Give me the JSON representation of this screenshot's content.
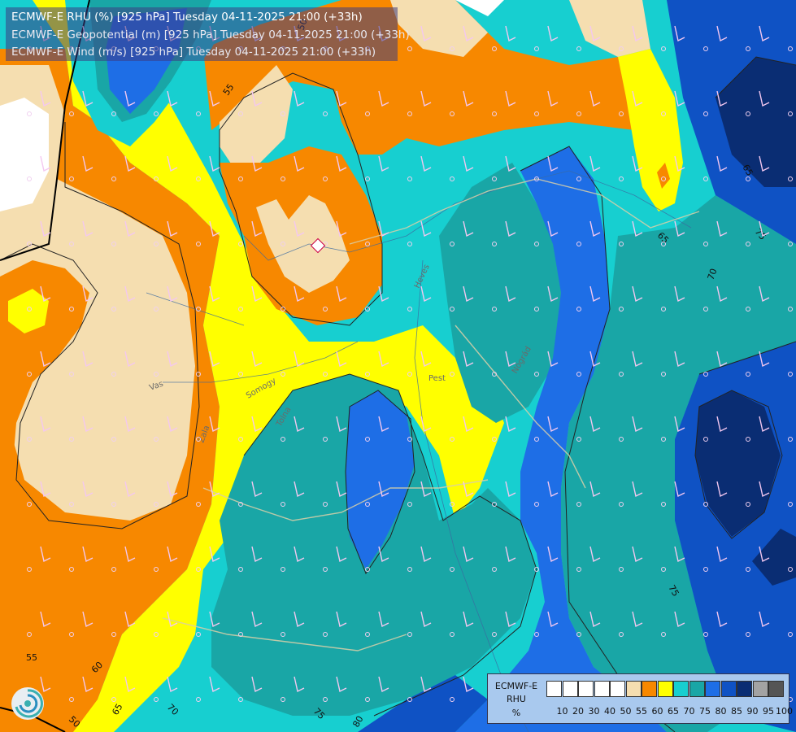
{
  "header": {
    "line1": "ECMWF-E RHU (%) [925 hPa] Tuesday 04-11-2025 21:00 (+33h)",
    "line2": "ECMWF-E Geopotential (m) [925 hPa] Tuesday 04-11-2025 21:00 (+33h)",
    "line3": "ECMWF-E Wind (m/s) [925 hPa] Tuesday 04-11-2025 21:00 (+33h)"
  },
  "legend": {
    "title_model": "ECMWF-E",
    "title_var": "RHU",
    "title_unit": "%",
    "ticks": [
      "10",
      "20",
      "30",
      "40",
      "50",
      "55",
      "60",
      "65",
      "70",
      "75",
      "80",
      "85",
      "90",
      "95",
      "100"
    ],
    "colors": [
      "#ffffff",
      "#ffffff",
      "#ffffff",
      "#ffffff",
      "#ffffff",
      "#f5deb0",
      "#f78800",
      "#ffff00",
      "#17cfd0",
      "#19a6a6",
      "#1e6ee6",
      "#0f52c4",
      "#0a2d73",
      "#a3a3a3",
      "#555555"
    ]
  },
  "map": {
    "colors": {
      "tan": "#f5deb0",
      "orange": "#f78800",
      "yellow": "#ffff00",
      "cyan": "#17cfd0",
      "teal": "#19a6a6",
      "blue": "#1e6ee6",
      "darkblue": "#0f52c4",
      "navy": "#0a2d73",
      "white": "#ffffff"
    },
    "contour_labels": [
      {
        "text": "55",
        "id": "c55-top"
      },
      {
        "text": "50",
        "id": "c50-top"
      },
      {
        "text": "65",
        "id": "c65-ne"
      },
      {
        "text": "65",
        "id": "c65-e"
      },
      {
        "text": "70",
        "id": "c70-e"
      },
      {
        "text": "75",
        "id": "c75-e"
      },
      {
        "text": "75",
        "id": "c75-se"
      },
      {
        "text": "55",
        "id": "c55-sw"
      },
      {
        "text": "60",
        "id": "c60-sw"
      },
      {
        "text": "65",
        "id": "c65-sw"
      },
      {
        "text": "50",
        "id": "c50-sw"
      },
      {
        "text": "70",
        "id": "c70-s"
      },
      {
        "text": "75",
        "id": "c75-s"
      },
      {
        "text": "80",
        "id": "c80-s"
      }
    ],
    "place_labels": [
      "Vas",
      "Zala",
      "Tolna",
      "Somogy",
      "Pest",
      "Heves",
      "Nógrád"
    ]
  }
}
